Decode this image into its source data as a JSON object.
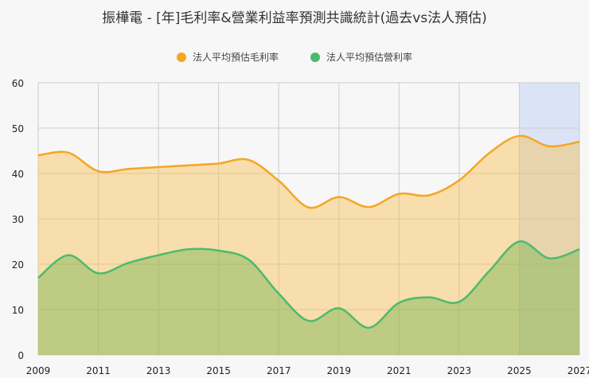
{
  "title": "振樺電 - [年]毛利率&營業利益率預測共識統計(過去vs法人預估)",
  "legend": [
    {
      "label": "法人平均預估毛利率",
      "color": "#f5a623"
    },
    {
      "label": "法人平均預估營利率",
      "color": "#4cbb6c"
    }
  ],
  "chart_data": {
    "type": "area",
    "title": "振樺電 - [年]毛利率&營業利益率預測共識統計(過去vs法人預估)",
    "xlabel": "",
    "ylabel": "",
    "x": [
      2009,
      2010,
      2011,
      2012,
      2013,
      2014,
      2015,
      2016,
      2017,
      2018,
      2019,
      2020,
      2021,
      2022,
      2023,
      2024,
      2025,
      2026,
      2027
    ],
    "x_tick_labels": [
      "2009",
      "2011",
      "2013",
      "2015",
      "2017",
      "2019",
      "2021",
      "2023",
      "2025",
      "2027"
    ],
    "ylim": [
      0,
      60
    ],
    "y_ticks": [
      0,
      10,
      20,
      30,
      40,
      50,
      60
    ],
    "grid": true,
    "legend_position": "top",
    "forecast_region": {
      "from": 2025,
      "to": 2027,
      "color": "#dbe4f7"
    },
    "series": [
      {
        "name": "法人平均預估毛利率",
        "color": "#f5a623",
        "values": [
          44.0,
          44.6,
          40.5,
          41.0,
          41.4,
          41.8,
          42.2,
          43.0,
          38.4,
          32.5,
          34.8,
          32.6,
          35.5,
          35.2,
          38.5,
          44.5,
          48.3,
          46.0,
          47.0
        ]
      },
      {
        "name": "法人平均預估營利率",
        "color": "#4cbb6c",
        "values": [
          17.0,
          22.0,
          18.0,
          20.3,
          22.0,
          23.3,
          23.0,
          21.0,
          13.5,
          7.5,
          10.3,
          6.0,
          11.5,
          12.7,
          11.7,
          18.5,
          25.0,
          21.3,
          23.3
        ]
      }
    ]
  }
}
